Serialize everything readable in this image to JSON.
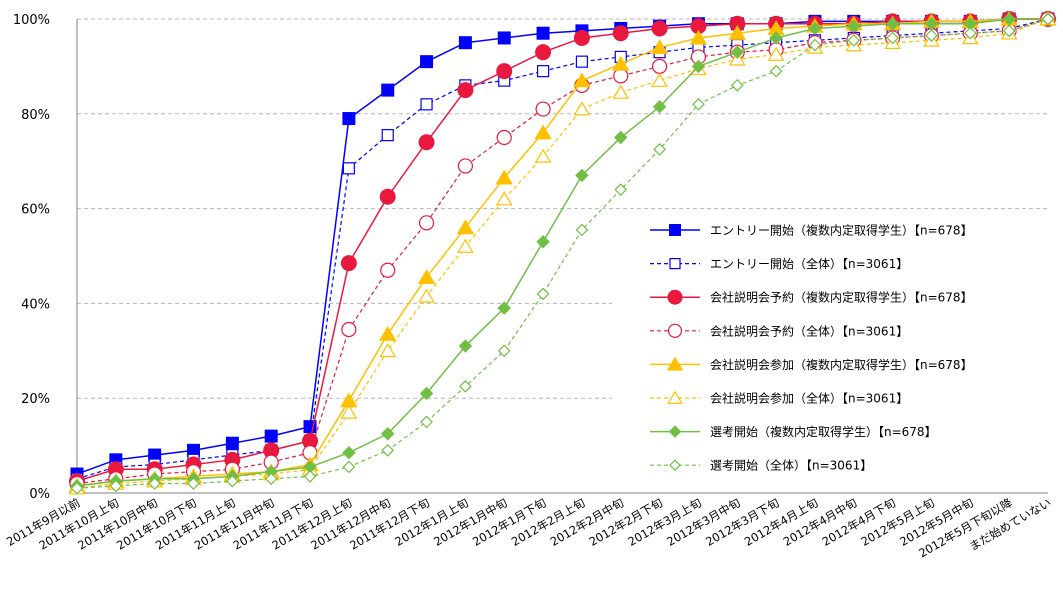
{
  "chart_data": {
    "type": "line",
    "title": "",
    "xlabel": "",
    "ylabel": "",
    "ylim": [
      0,
      100
    ],
    "y_ticks": [
      "0%",
      "20%",
      "40%",
      "60%",
      "80%",
      "100%"
    ],
    "y_tick_values": [
      0,
      20,
      40,
      60,
      80,
      100
    ],
    "grid": "horizontal dashed",
    "legend_position": "right",
    "categories": [
      "2011年9月以前",
      "2011年10月上旬",
      "2011年10月中旬",
      "2011年10月下旬",
      "2011年11月上旬",
      "2011年11月中旬",
      "2011年11月下旬",
      "2011年12月上旬",
      "2011年12月中旬",
      "2011年12月下旬",
      "2012年1月上旬",
      "2012年1月中旬",
      "2012年1月下旬",
      "2012年2月上旬",
      "2012年2月中旬",
      "2012年2月下旬",
      "2012年3月上旬",
      "2012年3月中旬",
      "2012年3月下旬",
      "2012年4月上旬",
      "2012年4月中旬",
      "2012年4月下旬",
      "2012年5月上旬",
      "2012年5月中旬",
      "2012年5月下旬以降",
      "まだ始めていない"
    ],
    "series": [
      {
        "name": "エントリー開始（複数内定取得学生）【n=678】",
        "color": "#0000ff",
        "dash": "solid",
        "marker": "square",
        "filled": true,
        "values": [
          4,
          7,
          8,
          9,
          10.5,
          12,
          14,
          79,
          85,
          91,
          95,
          96,
          97,
          97.5,
          98,
          98.5,
          99,
          99,
          99,
          99.5,
          99.5,
          99.5,
          99.5,
          99.5,
          100,
          100
        ]
      },
      {
        "name": "エントリー開始（全体）【n=3061】",
        "color": "#0000ff",
        "dash": "dashed",
        "marker": "square",
        "filled": false,
        "values": [
          3,
          5.5,
          6,
          7,
          8,
          9,
          11,
          68.5,
          75.5,
          82,
          86,
          87,
          89,
          91,
          92,
          93,
          94,
          94.5,
          95,
          95.5,
          96,
          96.5,
          97,
          97.5,
          98,
          100
        ]
      },
      {
        "name": "会社説明会予約（複数内定取得学生）【n=678】",
        "color": "#e8193c",
        "dash": "solid",
        "marker": "circle",
        "filled": true,
        "values": [
          2.5,
          5,
          5,
          6,
          7,
          9,
          11,
          48.5,
          62.5,
          74,
          85,
          89,
          93,
          96,
          97,
          98,
          98.5,
          99,
          99,
          99,
          99,
          99.5,
          99.5,
          99.5,
          100,
          100
        ]
      },
      {
        "name": "会社説明会予約（全体）【n=3061】",
        "color": "#e8193c",
        "dash": "dashed",
        "marker": "circle",
        "filled": false,
        "values": [
          2,
          3,
          4,
          4.5,
          5,
          6.5,
          8.5,
          34.5,
          47,
          57,
          69,
          75,
          81,
          86,
          88,
          90,
          92,
          93,
          93.5,
          95,
          95.5,
          96,
          96.5,
          97,
          97.5,
          100
        ]
      },
      {
        "name": "会社説明会参加（複数内定取得学生）【n=678】",
        "color": "#ffc000",
        "dash": "solid",
        "marker": "triangle",
        "filled": true,
        "values": [
          1.5,
          2.5,
          3,
          3.5,
          4,
          4.5,
          6,
          19.5,
          33.5,
          45.5,
          56,
          66.5,
          76,
          87,
          90.5,
          94,
          96,
          97,
          98,
          98.5,
          99,
          99,
          99.5,
          99.5,
          100,
          100
        ]
      },
      {
        "name": "会社説明会参加（全体）【n=3061】",
        "color": "#ffc000",
        "dash": "dashed",
        "marker": "triangle",
        "filled": false,
        "values": [
          1,
          2,
          2.5,
          3,
          3.5,
          4,
          5,
          17,
          30,
          41.5,
          52,
          62,
          71,
          81,
          84.5,
          87,
          89.5,
          91.5,
          92.5,
          94,
          94.5,
          95,
          95.5,
          96,
          97,
          100
        ]
      },
      {
        "name": "選考開始（複数内定取得学生）【n=678】",
        "color": "#70bf45",
        "dash": "solid",
        "marker": "diamond",
        "filled": true,
        "values": [
          1.5,
          2.5,
          3,
          3,
          3.5,
          4.5,
          5.5,
          8.5,
          12.5,
          21,
          31,
          39,
          53,
          67,
          75,
          81.5,
          90,
          93,
          96,
          98,
          98.5,
          99,
          99,
          99,
          100,
          100
        ]
      },
      {
        "name": "選考開始（全体）【n=3061】",
        "color": "#70bf45",
        "dash": "dashed",
        "marker": "diamond",
        "filled": false,
        "values": [
          1,
          1.5,
          2,
          2,
          2.5,
          3,
          3.5,
          5.5,
          9,
          15,
          22.5,
          30,
          42,
          55.5,
          64,
          72.5,
          82,
          86,
          89,
          94.5,
          95.5,
          96,
          96.5,
          97,
          97.5,
          100
        ]
      }
    ]
  }
}
